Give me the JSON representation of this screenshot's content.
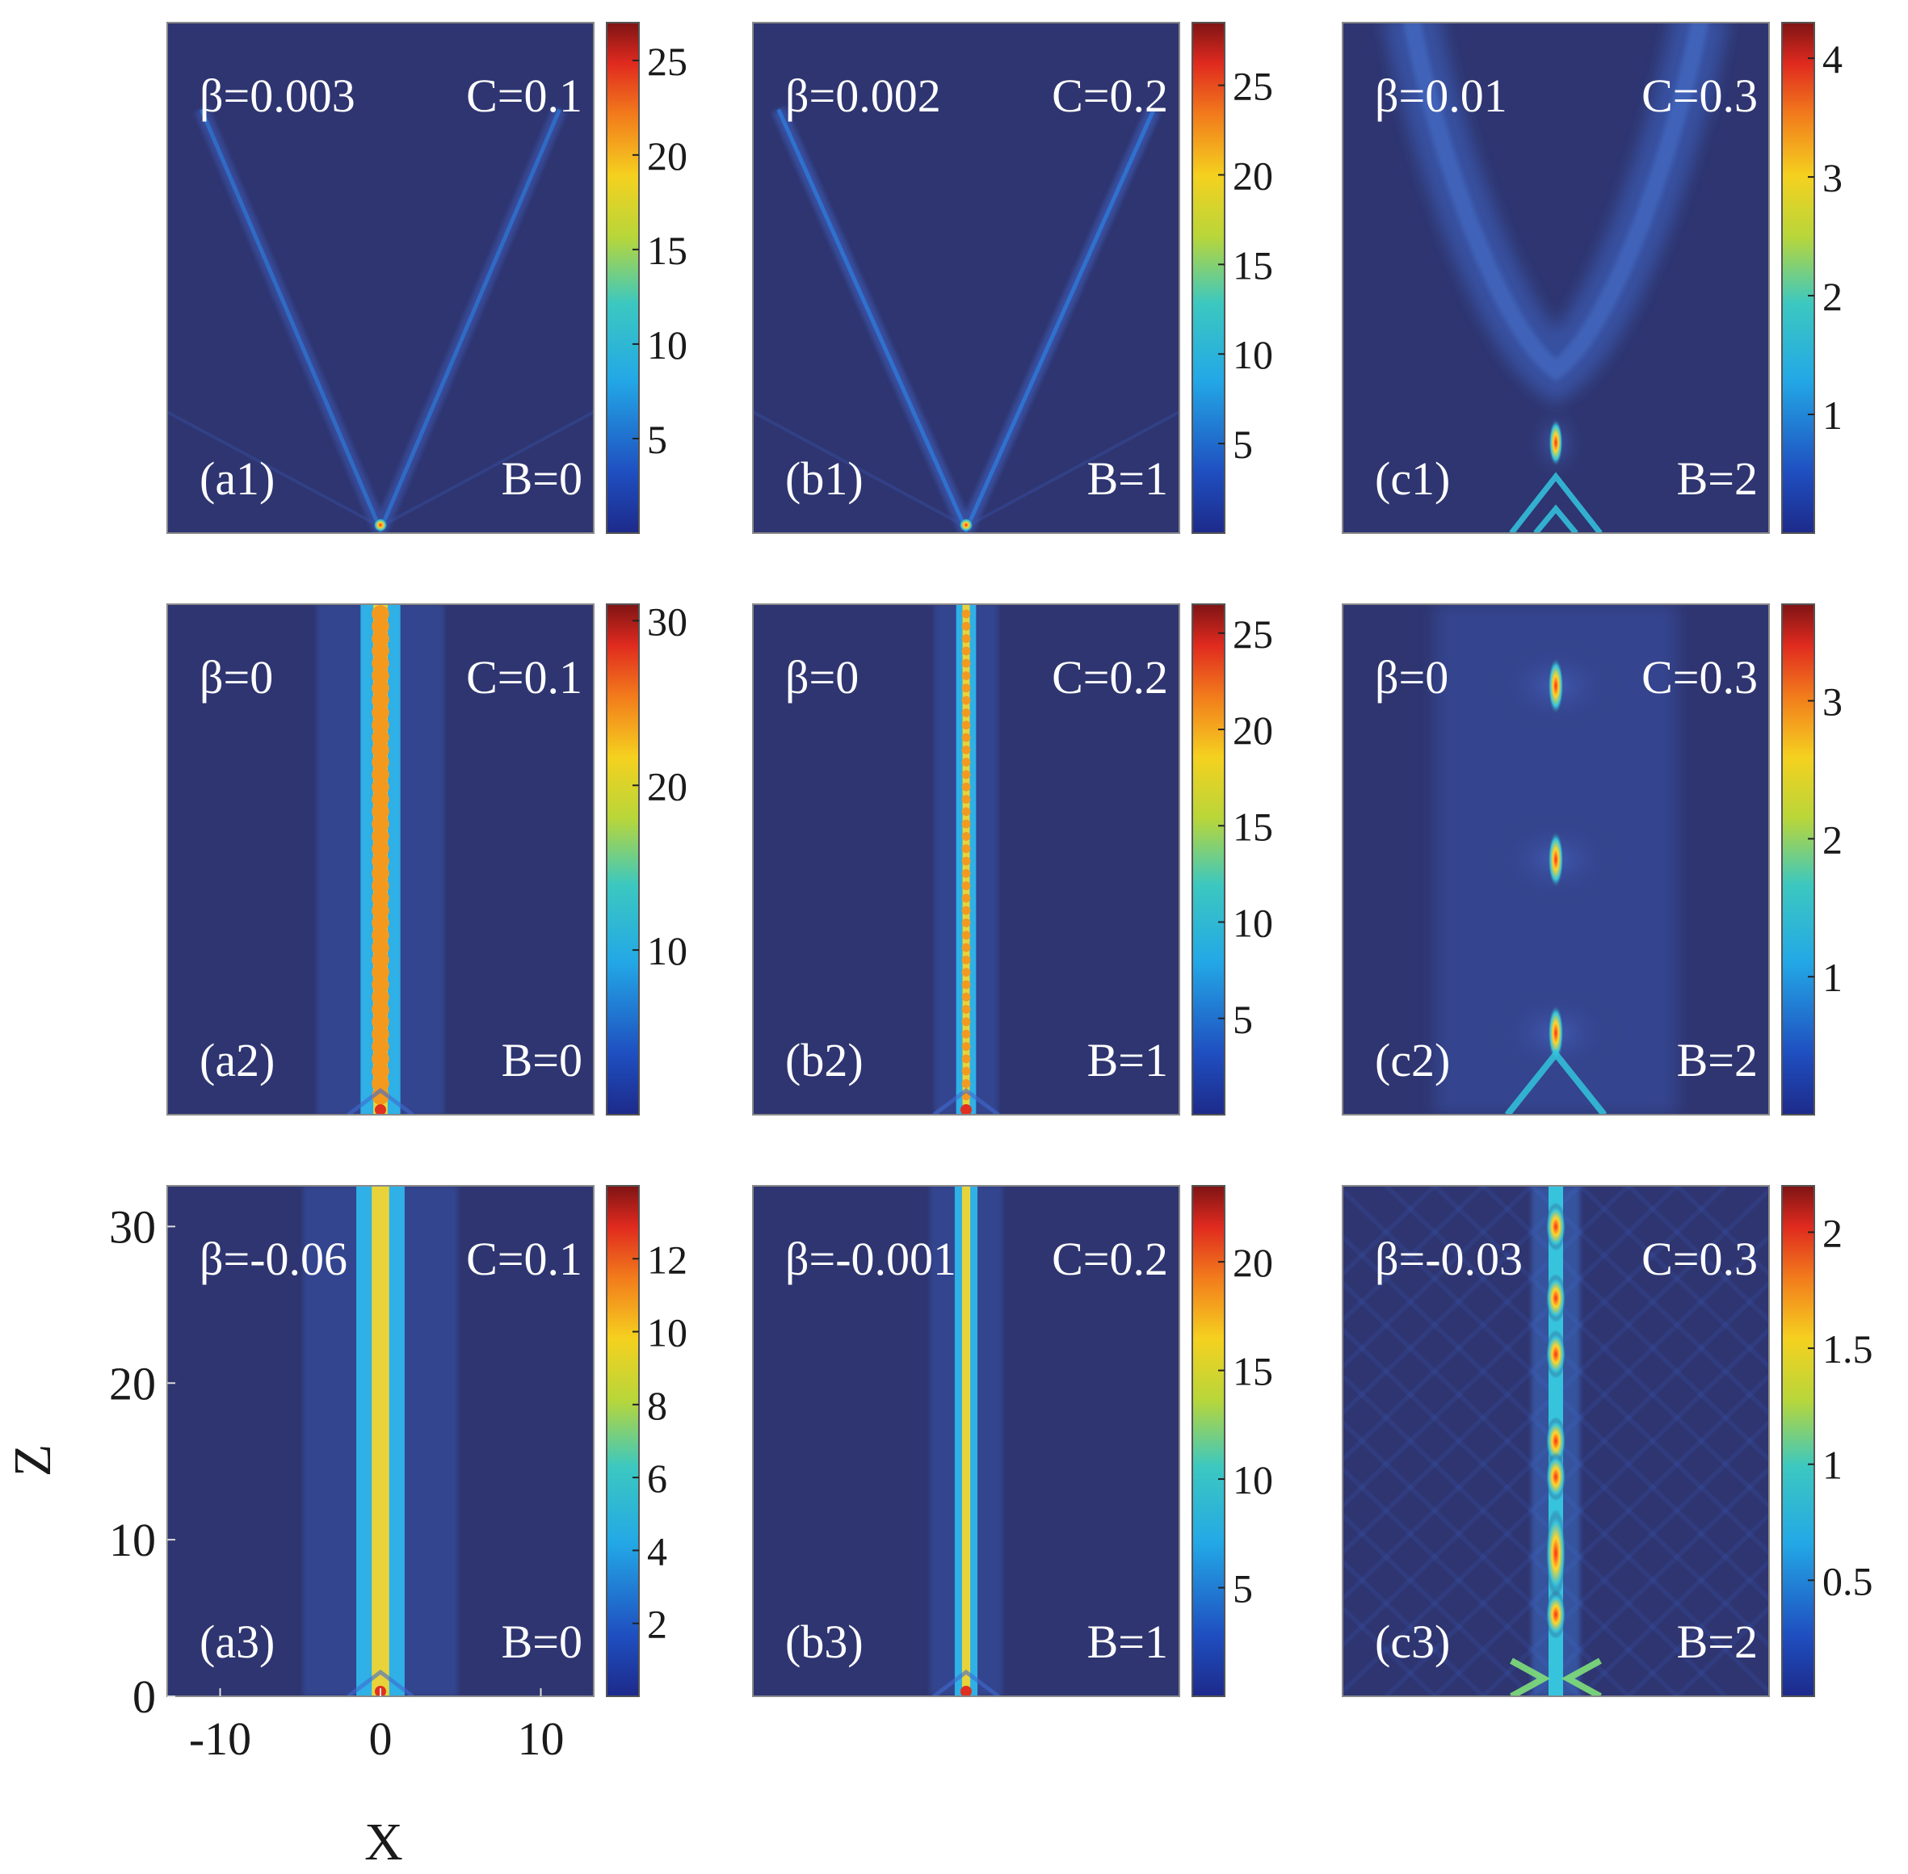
{
  "chart_data": {
    "type": "heatmap",
    "layout": "3x3 grid",
    "xlabel": "X",
    "ylabel": "Z",
    "xlim": [
      -13.3,
      13.3
    ],
    "ylim": [
      0,
      32.6
    ],
    "x_ticks": [
      {
        "value": -10,
        "label": "-10"
      },
      {
        "value": 0,
        "label": "0"
      },
      {
        "value": 10,
        "label": "10"
      }
    ],
    "y_ticks": [
      {
        "value": 0,
        "label": "0"
      },
      {
        "value": 10,
        "label": "10"
      },
      {
        "value": 20,
        "label": "20"
      },
      {
        "value": 30,
        "label": "30"
      }
    ],
    "colormap": "jet",
    "background_color": "#2e3570",
    "panels": [
      {
        "id": "a1",
        "label": "(a1)",
        "beta_text": "β=0.003",
        "c_text": "C=0.1",
        "b_text": "B=0",
        "pattern": "v",
        "params": {
          "spread": 0.42,
          "bright": 0.09
        },
        "cmax": 27,
        "cticks": [
          5,
          10,
          15,
          20,
          25
        ]
      },
      {
        "id": "b1",
        "label": "(b1)",
        "beta_text": "β=0.002",
        "c_text": "C=0.2",
        "b_text": "B=1",
        "pattern": "v",
        "params": {
          "spread": 0.44,
          "bright": 0.17
        },
        "cmax": 28.5,
        "cticks": [
          5,
          10,
          15,
          20,
          25
        ]
      },
      {
        "id": "c1",
        "label": "(c1)",
        "beta_text": "β=0.01",
        "c_text": "C=0.3",
        "b_text": "B=2",
        "pattern": "u",
        "params": {},
        "cmax": 4.3,
        "cticks": [
          1,
          2,
          3,
          4
        ]
      },
      {
        "id": "a2",
        "label": "(a2)",
        "beta_text": "β=0",
        "c_text": "C=0.1",
        "b_text": "B=0",
        "pattern": "line",
        "params": {
          "width": 0.28,
          "dotted": true
        },
        "cmax": 31,
        "cticks": [
          10,
          20,
          30
        ]
      },
      {
        "id": "b2",
        "label": "(b2)",
        "beta_text": "β=0",
        "c_text": "C=0.2",
        "b_text": "B=1",
        "pattern": "line",
        "params": {
          "width": 0.14,
          "dotted": true
        },
        "cmax": 26.5,
        "cticks": [
          5,
          10,
          15,
          20,
          25
        ]
      },
      {
        "id": "c2",
        "label": "(c2)",
        "beta_text": "β=0",
        "c_text": "C=0.3",
        "b_text": "B=2",
        "pattern": "breather",
        "params": {},
        "cmax": 3.7,
        "cticks": [
          1,
          2,
          3
        ]
      },
      {
        "id": "a3",
        "label": "(a3)",
        "beta_text": "β=-0.06",
        "c_text": "C=0.1",
        "b_text": "B=0",
        "pattern": "line",
        "params": {
          "width": 0.34,
          "dotted": false
        },
        "cmax": 14,
        "cticks": [
          2,
          4,
          6,
          8,
          10,
          12
        ]
      },
      {
        "id": "b3",
        "label": "(b3)",
        "beta_text": "β=-0.001",
        "c_text": "C=0.2",
        "b_text": "B=1",
        "pattern": "line",
        "params": {
          "width": 0.16,
          "dotted": false
        },
        "cmax": 23.5,
        "cticks": [
          5,
          10,
          15,
          20
        ]
      },
      {
        "id": "c3",
        "label": "(c3)",
        "beta_text": "β=-0.03",
        "c_text": "C=0.3",
        "b_text": "B=2",
        "pattern": "pulse",
        "params": {},
        "cmax": 2.2,
        "cticks": [
          0.5,
          1,
          1.5,
          2
        ]
      }
    ]
  }
}
